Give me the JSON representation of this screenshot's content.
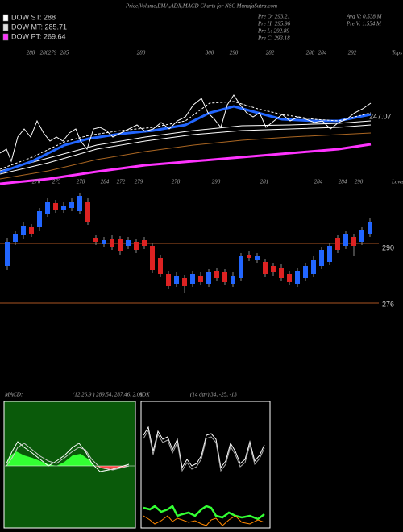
{
  "header": {
    "title": "Price,Volume,EMA,ADX,MACD Charts for NSC MunafaSutra.com"
  },
  "legend": [
    {
      "label": "DOW ST: 288",
      "color": "#ffffff"
    },
    {
      "label": "DOW MT: 285.71",
      "color": "#dddddd"
    },
    {
      "label": "DOW PT: 269.64",
      "color": "#ff33ff"
    }
  ],
  "info": [
    "Pre O: 293.21",
    "Pre H: 295.96",
    "Pre L: 292.89",
    "Pre C: 293.18",
    "Avg V: 0.538 M",
    "Pre V: 1.554 M"
  ],
  "price_chart": {
    "tops_label": "Tops",
    "lows_label": "Lows",
    "tops": [
      288,
      288,
      279,
      285,
      280,
      300,
      290,
      282,
      288,
      284,
      292
    ],
    "lows": [
      276,
      275,
      278,
      284,
      272,
      279,
      278,
      290,
      281,
      284,
      284,
      290
    ],
    "last_value": "247.07",
    "levels": [
      "290",
      "276"
    ]
  },
  "indicators": {
    "macd_label": "MACD:",
    "macd_values": "(12,26,9 ) 289.54, 287.46, 2.08",
    "adx_label": "ADX",
    "adx_values": "(14 day) 34, -25, -13"
  }
}
